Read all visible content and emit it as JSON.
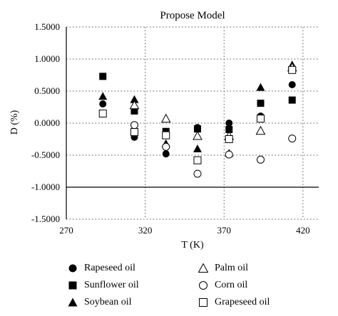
{
  "chart_data": {
    "type": "scatter",
    "title": "Propose Model",
    "xlabel": "T (K)",
    "ylabel": "D (%)",
    "xlim": [
      270,
      430
    ],
    "ylim": [
      -1.5,
      1.5
    ],
    "xticks": [
      "270",
      "320",
      "370",
      "420"
    ],
    "yticks": [
      "1.5000",
      "1.0000",
      "0.5000",
      "0.0000",
      "-0.5000",
      "-1.0000",
      "-1.5000"
    ],
    "grid": "dotted",
    "legend_position": "bottom",
    "series": [
      {
        "name": "Rapeseed oil",
        "marker": "filled-circle",
        "x": [
          293.15,
          313.15,
          333.15,
          353.15,
          373.15,
          393.15,
          413.15
        ],
        "y": [
          0.3,
          -0.22,
          -0.48,
          -0.07,
          0.0,
          0.11,
          0.6
        ]
      },
      {
        "name": "Sunflower oil",
        "marker": "filled-square",
        "x": [
          293.15,
          313.15,
          333.15,
          353.15,
          373.15,
          393.15,
          413.15
        ],
        "y": [
          0.73,
          0.19,
          -0.13,
          -0.09,
          -0.1,
          0.31,
          0.36
        ]
      },
      {
        "name": "Soybean oil",
        "marker": "filled-triangle",
        "x": [
          293.15,
          313.15,
          333.15,
          353.15,
          373.15,
          393.15,
          413.15
        ],
        "y": [
          0.42,
          0.37,
          -0.32,
          -0.4,
          -0.47,
          0.56,
          0.91
        ]
      },
      {
        "name": "Palm oil",
        "marker": "open-triangle",
        "x": [
          313.15,
          333.15,
          353.15,
          373.15,
          393.15,
          413.15
        ],
        "y": [
          0.28,
          0.07,
          -0.2,
          -0.2,
          -0.12,
          0.87
        ]
      },
      {
        "name": "Corn oil",
        "marker": "open-circle",
        "x": [
          313.15,
          333.15,
          353.15,
          373.15,
          393.15,
          413.15
        ],
        "y": [
          -0.03,
          -0.37,
          -0.79,
          -0.49,
          -0.57,
          -0.24
        ]
      },
      {
        "name": "Grapeseed oil",
        "marker": "open-square",
        "x": [
          293.15,
          313.15,
          333.15,
          353.15,
          373.15,
          393.15,
          413.15
        ],
        "y": [
          0.15,
          -0.14,
          -0.19,
          -0.58,
          -0.25,
          0.07,
          0.83
        ]
      }
    ]
  }
}
